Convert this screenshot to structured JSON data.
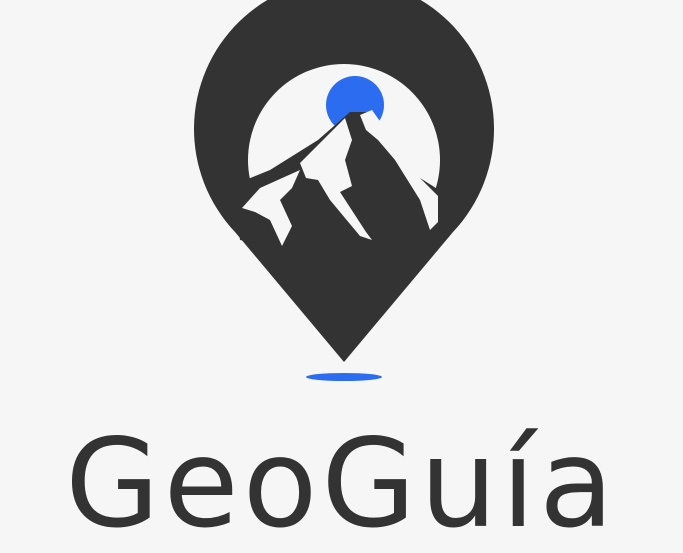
{
  "brand": {
    "name": "GeoGuía",
    "colors": {
      "dark": "#333333",
      "accent": "#2b6cf0",
      "background": "#f6f6f6",
      "highlight": "#f6f6f6"
    }
  },
  "logo": {
    "icon": "map-pin-mountain-icon"
  }
}
